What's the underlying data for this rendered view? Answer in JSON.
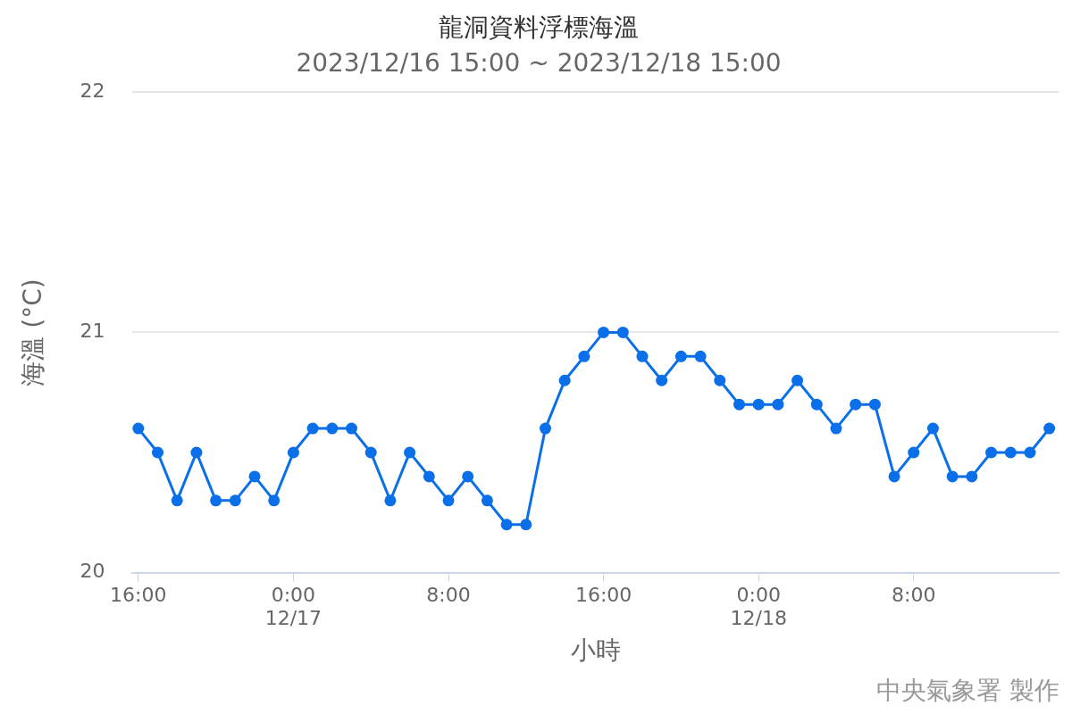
{
  "chart_data": {
    "type": "line",
    "title": "龍洞資料浮標海溫",
    "subtitle": "2023/12/16 15:00 ~ 2023/12/18 15:00",
    "xlabel": "小時",
    "ylabel": "海溫 (°C)",
    "annotations": [
      "中央氣象署 製作"
    ],
    "x": [
      "2023-12-16T16:00",
      "2023-12-16T17:00",
      "2023-12-16T18:00",
      "2023-12-16T19:00",
      "2023-12-16T20:00",
      "2023-12-16T21:00",
      "2023-12-16T22:00",
      "2023-12-16T23:00",
      "2023-12-17T00:00",
      "2023-12-17T01:00",
      "2023-12-17T02:00",
      "2023-12-17T03:00",
      "2023-12-17T04:00",
      "2023-12-17T05:00",
      "2023-12-17T06:00",
      "2023-12-17T07:00",
      "2023-12-17T08:00",
      "2023-12-17T09:00",
      "2023-12-17T10:00",
      "2023-12-17T11:00",
      "2023-12-17T12:00",
      "2023-12-17T13:00",
      "2023-12-17T14:00",
      "2023-12-17T15:00",
      "2023-12-17T16:00",
      "2023-12-17T17:00",
      "2023-12-17T18:00",
      "2023-12-17T19:00",
      "2023-12-17T20:00",
      "2023-12-17T21:00",
      "2023-12-17T22:00",
      "2023-12-17T23:00",
      "2023-12-18T00:00",
      "2023-12-18T01:00",
      "2023-12-18T02:00",
      "2023-12-18T03:00",
      "2023-12-18T04:00",
      "2023-12-18T05:00",
      "2023-12-18T06:00",
      "2023-12-18T07:00",
      "2023-12-18T08:00",
      "2023-12-18T09:00",
      "2023-12-18T10:00",
      "2023-12-18T11:00",
      "2023-12-18T12:00",
      "2023-12-18T13:00",
      "2023-12-18T14:00",
      "2023-12-18T15:00"
    ],
    "series": [
      {
        "color": "#0a6fe8",
        "values": [
          20.6,
          20.5,
          20.3,
          20.5,
          20.3,
          20.3,
          20.4,
          20.3,
          20.5,
          20.6,
          20.6,
          20.6,
          20.5,
          20.3,
          20.5,
          20.4,
          20.3,
          20.4,
          20.3,
          20.2,
          20.2,
          20.6,
          20.8,
          20.9,
          21.0,
          21.0,
          20.9,
          20.8,
          20.9,
          20.9,
          20.8,
          20.7,
          20.7,
          20.7,
          20.8,
          20.7,
          20.6,
          20.7,
          20.7,
          20.4,
          20.5,
          20.6,
          20.4,
          20.4,
          20.5,
          20.5,
          20.5,
          20.6
        ]
      }
    ],
    "xlim": [
      "2023-12-16T15:40",
      "2023-12-18T15:30"
    ],
    "xticks": [
      {
        "value": "2023-12-16T16:00",
        "label": "16:00"
      },
      {
        "value": "2023-12-17T00:00",
        "label": "0:00\n12/17"
      },
      {
        "value": "2023-12-17T08:00",
        "label": "8:00"
      },
      {
        "value": "2023-12-17T16:00",
        "label": "16:00"
      },
      {
        "value": "2023-12-18T00:00",
        "label": "0:00\n12/18"
      },
      {
        "value": "2023-12-18T08:00",
        "label": "8:00"
      }
    ],
    "ylim": [
      20,
      22
    ],
    "yticks": [
      20,
      21,
      22
    ],
    "grid": "y",
    "legend": false,
    "marker": "circle",
    "line_style": "solid"
  }
}
